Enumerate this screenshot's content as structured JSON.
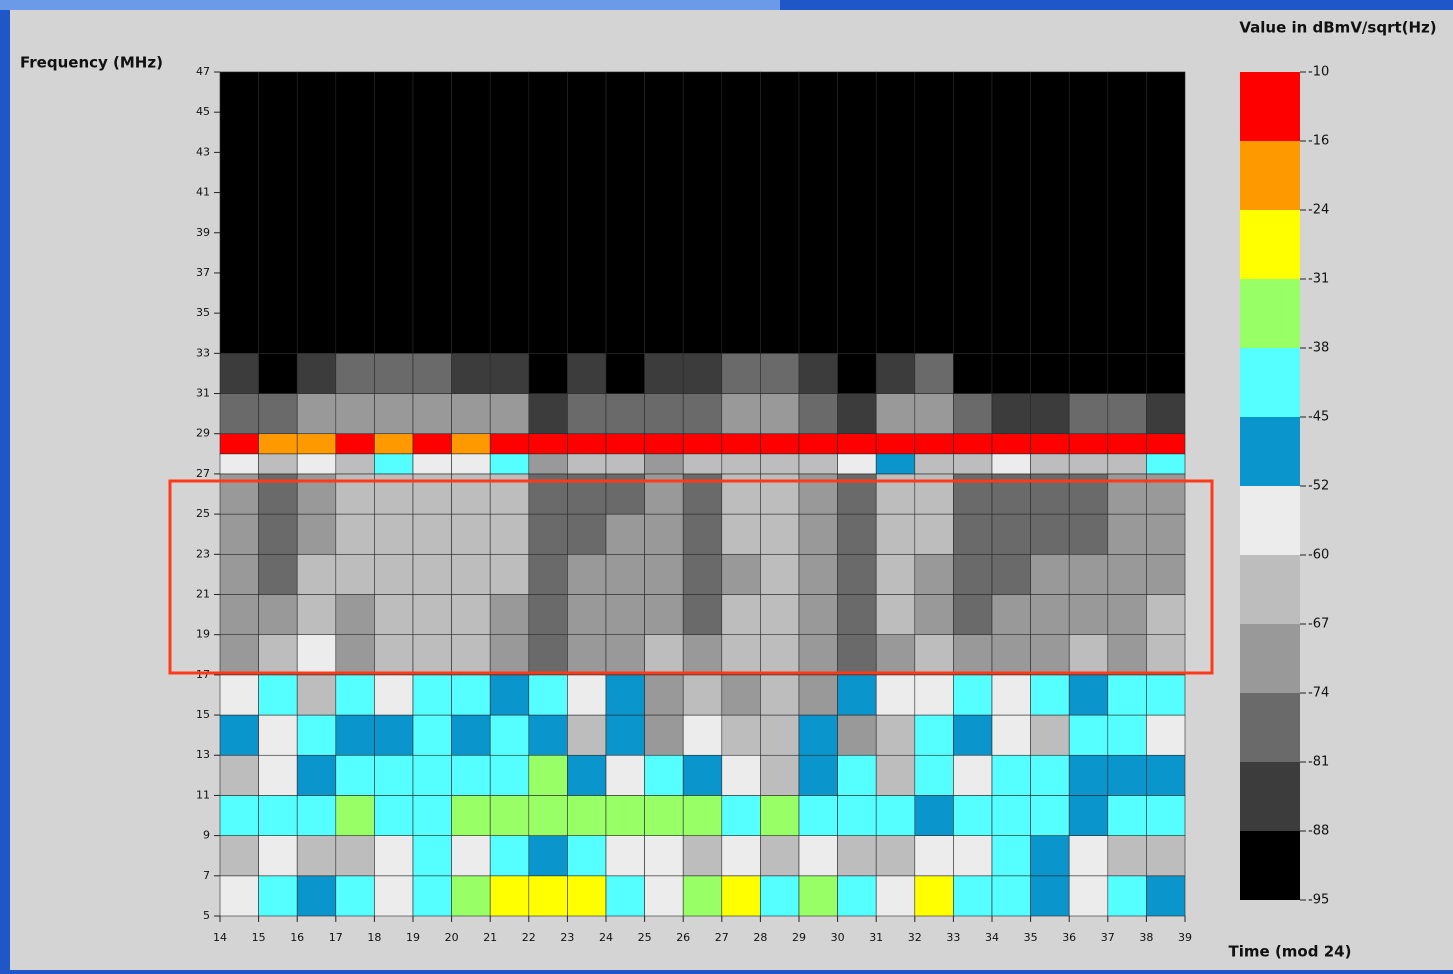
{
  "chart_data": {
    "type": "heatmap",
    "y_label": "Frequency (MHz)",
    "x_label": "Time (mod 24)",
    "colorbar_label": "Value in dBmV/sqrt(Hz)",
    "xlim": [
      14,
      39
    ],
    "ylim": [
      5,
      47
    ],
    "xticks": [
      14,
      15,
      16,
      17,
      18,
      19,
      20,
      21,
      22,
      23,
      24,
      25,
      26,
      27,
      28,
      29,
      30,
      31,
      32,
      33,
      34,
      35,
      36,
      37,
      38,
      39
    ],
    "yticks": [
      5,
      7,
      9,
      11,
      13,
      15,
      17,
      19,
      21,
      23,
      25,
      27,
      29,
      31,
      33,
      35,
      37,
      39,
      41,
      43,
      45,
      47
    ],
    "x_edges": [
      14,
      15,
      16,
      17,
      18,
      19,
      20,
      21,
      22,
      23,
      24,
      25,
      26,
      27,
      28,
      29,
      30,
      31,
      32,
      33,
      34,
      35,
      36,
      37,
      38,
      39
    ],
    "y_edges": [
      5,
      7,
      9,
      11,
      13,
      15,
      17,
      19,
      21,
      23,
      25,
      27,
      28,
      29,
      31,
      33,
      47
    ],
    "z": [
      [
        -56,
        -42,
        -48,
        -40,
        -56,
        -44,
        -35,
        -28,
        -27,
        -26,
        -42,
        -56,
        -35,
        -30,
        -44,
        -35,
        -42,
        -56,
        -27,
        -44,
        -40,
        -48,
        -56,
        -44,
        -48
      ],
      [
        -64,
        -58,
        -62,
        -66,
        -58,
        -44,
        -56,
        -42,
        -48,
        -40,
        -56,
        -56,
        -62,
        -58,
        -64,
        -60,
        -66,
        -62,
        -58,
        -56,
        -44,
        -48,
        -58,
        -62,
        -64
      ],
      [
        -44,
        -40,
        -42,
        -35,
        -42,
        -40,
        -33,
        -33,
        -35,
        -35,
        -33,
        -35,
        -34,
        -40,
        -35,
        -42,
        -44,
        -40,
        -48,
        -42,
        -40,
        -44,
        -48,
        -40,
        -42
      ],
      [
        -66,
        -58,
        -48,
        -42,
        -44,
        -40,
        -42,
        -40,
        -35,
        -48,
        -56,
        -44,
        -48,
        -58,
        -66,
        -48,
        -44,
        -66,
        -42,
        -56,
        -40,
        -44,
        -48,
        -46,
        -48
      ],
      [
        -48,
        -56,
        -44,
        -48,
        -48,
        -44,
        -48,
        -44,
        -48,
        -64,
        -48,
        -70,
        -56,
        -66,
        -62,
        -48,
        -70,
        -66,
        -44,
        -48,
        -60,
        -66,
        -44,
        -44,
        -56
      ],
      [
        -58,
        -44,
        -62,
        -44,
        -58,
        -44,
        -44,
        -48,
        -42,
        -58,
        -46,
        -70,
        -66,
        -70,
        -62,
        -72,
        -46,
        -58,
        -56,
        -44,
        -56,
        -44,
        -48,
        -44,
        -44
      ],
      [
        -72,
        -66,
        -60,
        -68,
        -66,
        -64,
        -66,
        -70,
        -76,
        -74,
        -72,
        -66,
        -74,
        -64,
        -62,
        -74,
        -78,
        -68,
        -66,
        -74,
        -72,
        -70,
        -64,
        -68,
        -66
      ],
      [
        -70,
        -74,
        -64,
        -68,
        -66,
        -66,
        -64,
        -68,
        -76,
        -72,
        -70,
        -74,
        -76,
        -66,
        -64,
        -70,
        -78,
        -66,
        -68,
        -76,
        -74,
        -72,
        -70,
        -70,
        -66
      ],
      [
        -68,
        -76,
        -66,
        -66,
        -64,
        -64,
        -64,
        -66,
        -76,
        -74,
        -72,
        -74,
        -76,
        -68,
        -66,
        -70,
        -80,
        -64,
        -70,
        -78,
        -76,
        -74,
        -74,
        -72,
        -68
      ],
      [
        -72,
        -78,
        -68,
        -64,
        -66,
        -64,
        -66,
        -66,
        -78,
        -76,
        -74,
        -72,
        -78,
        -66,
        -64,
        -72,
        -80,
        -64,
        -66,
        -78,
        -76,
        -76,
        -76,
        -74,
        -70
      ],
      [
        -74,
        -78,
        -70,
        -64,
        -66,
        -64,
        -66,
        -66,
        -78,
        -76,
        -76,
        -70,
        -76,
        -66,
        -64,
        -72,
        -80,
        -66,
        -66,
        -78,
        -78,
        -78,
        -76,
        -74,
        -72
      ],
      [
        -60,
        -62,
        -60,
        -66,
        -42,
        -56,
        -60,
        -44,
        -70,
        -64,
        -66,
        -68,
        -64,
        -66,
        -66,
        -64,
        -60,
        -48,
        -66,
        -64,
        -60,
        -62,
        -64,
        -66,
        -44
      ],
      [
        -14,
        -18,
        -20,
        -14,
        -18,
        -14,
        -18,
        -14,
        -12,
        -12,
        -12,
        -12,
        -12,
        -12,
        -12,
        -12,
        -12,
        -12,
        -12,
        -12,
        -14,
        -12,
        -12,
        -12,
        -12
      ],
      [
        -78,
        -80,
        -74,
        -70,
        -70,
        -68,
        -72,
        -72,
        -82,
        -80,
        -80,
        -76,
        -78,
        -72,
        -70,
        -76,
        -82,
        -74,
        -74,
        -80,
        -82,
        -82,
        -80,
        -80,
        -82
      ],
      [
        -84,
        -92,
        -82,
        -80,
        -78,
        -78,
        -82,
        -82,
        -92,
        -84,
        -92,
        -84,
        -82,
        -80,
        -80,
        -84,
        -92,
        -82,
        -80,
        -92,
        -92,
        -92,
        -92,
        -92,
        -92
      ],
      [
        -92,
        -92,
        -92,
        -92,
        -92,
        -92,
        -92,
        -92,
        -92,
        -92,
        -92,
        -92,
        -92,
        -92,
        -92,
        -92,
        -92,
        -92,
        -92,
        -92,
        -92,
        -92,
        -92,
        -92,
        -92
      ]
    ],
    "colorbar": {
      "levels": [
        -95,
        -88,
        -81,
        -74,
        -67,
        -60,
        -52,
        -45,
        -38,
        -31,
        -24,
        -16,
        -10
      ],
      "colors": [
        "#000000",
        "#3c3c3c",
        "#6a6a6a",
        "#999999",
        "#bdbdbd",
        "#ececec",
        "#0a96cc",
        "#55ffff",
        "#99ff66",
        "#ffff00",
        "#ff9900",
        "#ff0000"
      ]
    }
  }
}
